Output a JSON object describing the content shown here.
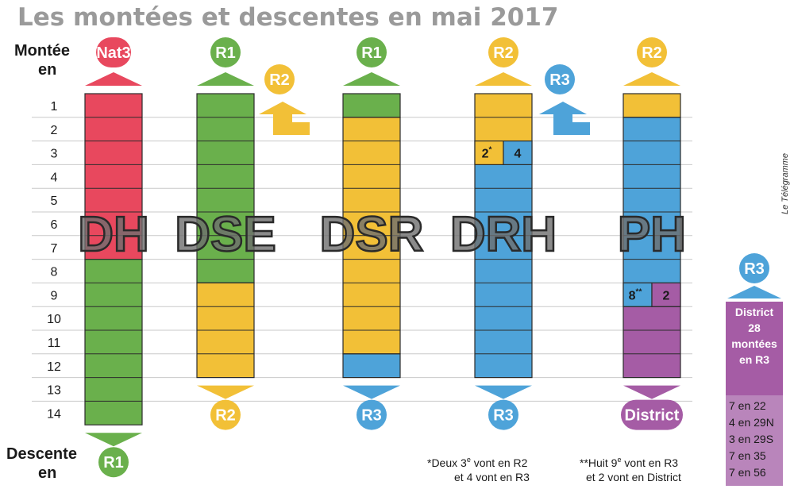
{
  "title": "Les montées et descentes en mai 2017",
  "label_up": [
    "Montée",
    "en"
  ],
  "label_down": [
    "Descente",
    "en"
  ],
  "rows": [
    "1",
    "2",
    "3",
    "4",
    "5",
    "6",
    "7",
    "8",
    "9",
    "10",
    "11",
    "12",
    "13",
    "14"
  ],
  "credit": "Le Télégramme",
  "colors": {
    "red": "#e8485e",
    "green": "#6ab04c",
    "yellow": "#f2c037",
    "blue": "#4ea3d9",
    "purple": "#a55ca5"
  },
  "divisions": [
    {
      "name": "DH",
      "up": {
        "label": "Nat3",
        "color": "red"
      },
      "down": {
        "label": "R1",
        "color": "green"
      },
      "segments": [
        {
          "from": 1,
          "to": 7,
          "color": "red"
        },
        {
          "from": 8,
          "to": 14,
          "color": "green"
        }
      ]
    },
    {
      "name": "DSE",
      "up": {
        "label": "R1",
        "color": "green"
      },
      "down": {
        "label": "R2",
        "color": "yellow"
      },
      "segments": [
        {
          "from": 1,
          "to": 8,
          "color": "green"
        },
        {
          "from": 9,
          "to": 12,
          "color": "yellow"
        }
      ]
    },
    {
      "name": "DSR",
      "up": {
        "label": "R1",
        "color": "green"
      },
      "side_up": {
        "label": "R2",
        "color": "yellow"
      },
      "down": {
        "label": "R3",
        "color": "blue"
      },
      "segments": [
        {
          "from": 1,
          "to": 1,
          "color": "green"
        },
        {
          "from": 2,
          "to": 11,
          "color": "yellow"
        },
        {
          "from": 12,
          "to": 12,
          "color": "blue"
        }
      ]
    },
    {
      "name": "DRH",
      "up": {
        "label": "R2",
        "color": "yellow"
      },
      "down": {
        "label": "R3",
        "color": "blue"
      },
      "segments": [
        {
          "from": 1,
          "to": 2,
          "color": "yellow"
        },
        {
          "from": 3,
          "to": 12,
          "color": "blue"
        }
      ],
      "split": {
        "row": 3,
        "left": {
          "text": "2",
          "sup": "*",
          "color": "yellow"
        },
        "right": {
          "text": "4",
          "color": "blue"
        }
      }
    },
    {
      "name": "PH",
      "up": {
        "label": "R2",
        "color": "yellow"
      },
      "side_up": {
        "label": "R3",
        "color": "blue"
      },
      "down": {
        "label": "District",
        "color": "purple"
      },
      "segments": [
        {
          "from": 1,
          "to": 1,
          "color": "yellow"
        },
        {
          "from": 2,
          "to": 9,
          "color": "blue"
        },
        {
          "from": 10,
          "to": 12,
          "color": "purple"
        }
      ],
      "split": {
        "row": 9,
        "left": {
          "text": "8",
          "sup": "**",
          "color": "blue"
        },
        "right": {
          "text": "2",
          "color": "purple"
        }
      }
    }
  ],
  "notes": [
    {
      "lines": [
        "*Deux 3e vont en R2",
        "et 4 vont en R3"
      ],
      "sup_in_line0": "e"
    },
    {
      "lines": [
        "**Huit 9e vont en R3",
        "et 2 vont en District"
      ],
      "sup_in_line0": "e"
    }
  ],
  "district_box": {
    "up": {
      "label": "R3",
      "color": "blue"
    },
    "header": [
      "District",
      "28",
      "montées",
      "en R3"
    ],
    "items": [
      "7 en 22",
      "4 en 29N",
      "3 en 29S",
      "7 en 35",
      "7 en 56"
    ]
  }
}
